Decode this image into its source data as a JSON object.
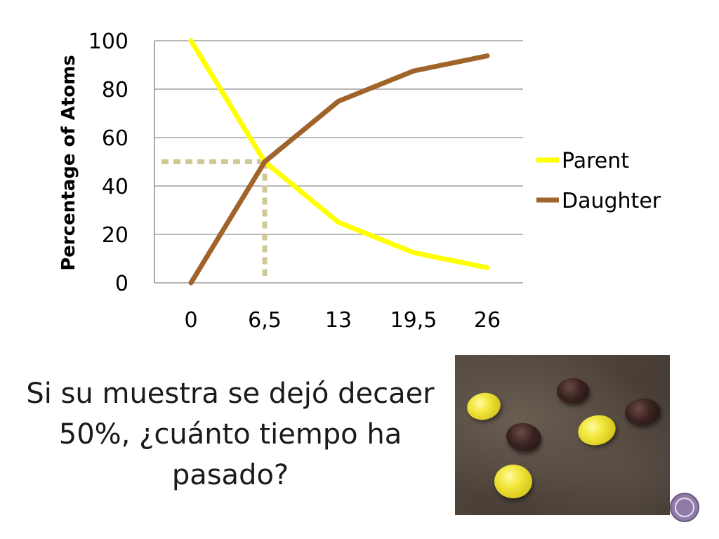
{
  "chart_data": {
    "type": "line",
    "x": [
      "0",
      "6,5",
      "13",
      "19,5",
      "26"
    ],
    "ylabel": "Percentage of Atoms",
    "ylim": [
      0,
      100
    ],
    "yticks": [
      "0",
      "20",
      "40",
      "60",
      "80",
      "100"
    ],
    "grid": true,
    "legend_position": "right",
    "series": [
      {
        "name": "Parent",
        "values": [
          100,
          50,
          25,
          12.5,
          6.25
        ],
        "color": "#ffff00"
      },
      {
        "name": "Daughter",
        "values": [
          0,
          50,
          75,
          87.5,
          93.75
        ],
        "color": "#a0632a"
      }
    ],
    "annotation": {
      "type": "dashed-guides",
      "x": "6,5",
      "y": 50,
      "color": "#cfc994"
    }
  },
  "question": {
    "line1": "Si su muestra se dejó decaer",
    "line2": "50%, ¿cuánto tiempo ha",
    "line3": "pasado?"
  },
  "photo": {
    "description_icon": "candies-photo"
  },
  "nav": {
    "icon": "circle-nav-icon"
  }
}
